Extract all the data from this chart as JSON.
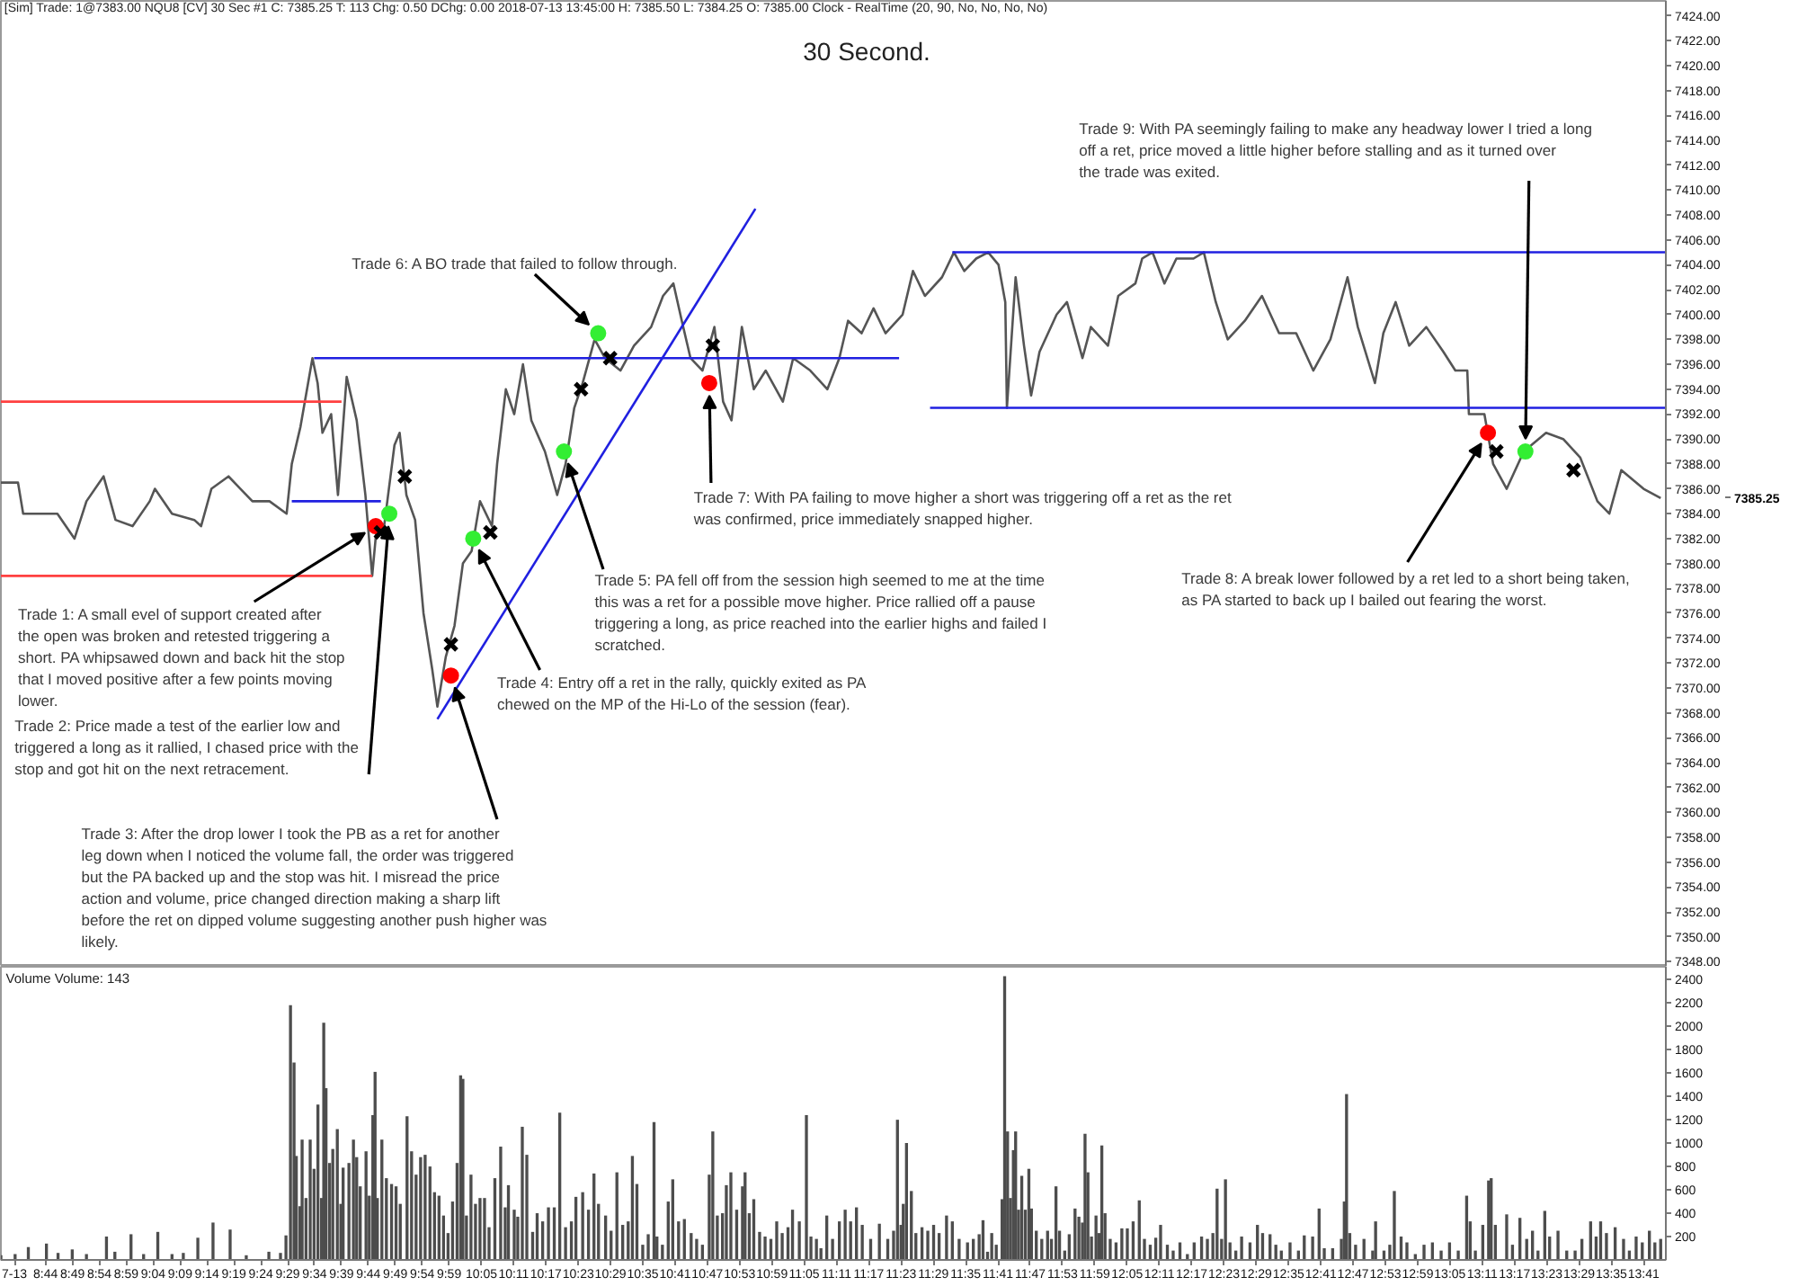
{
  "chart_data": [
    {
      "type": "line",
      "title": "30 Second.",
      "subtitle": "[Sim]  Trade: 1@7383.00  NQU8 [CV]  30 Sec  #1  C: 7385.25  T: 113  Chg: 0.50  DChg: 0.00  2018-07-13 13:45:00 H: 7385.50 L: 7384.25 O: 7385.00 Clock - RealTime  (20, 90, No, No, No, No)",
      "xlim": [
        8.595,
        13.752
      ],
      "ylim": [
        7347.6,
        7425.2
      ],
      "tick_labels": "y",
      "yticks": [
        {
          "value": 7348,
          "label": "7348.00"
        },
        {
          "value": 7350,
          "label": "7350.00"
        },
        {
          "value": 7352,
          "label": "7352.00"
        },
        {
          "value": 7354,
          "label": "7354.00"
        },
        {
          "value": 7356,
          "label": "7356.00"
        },
        {
          "value": 7358,
          "label": "7358.00"
        },
        {
          "value": 7360,
          "label": "7360.00"
        },
        {
          "value": 7362,
          "label": "7362.00"
        },
        {
          "value": 7364,
          "label": "7364.00"
        },
        {
          "value": 7366,
          "label": "7366.00"
        },
        {
          "value": 7368,
          "label": "7368.00"
        },
        {
          "value": 7370,
          "label": "7370.00"
        },
        {
          "value": 7372,
          "label": "7372.00"
        },
        {
          "value": 7374,
          "label": "7374.00"
        },
        {
          "value": 7376,
          "label": "7376.00"
        },
        {
          "value": 7378,
          "label": "7378.00"
        },
        {
          "value": 7380,
          "label": "7380.00"
        },
        {
          "value": 7382,
          "label": "7382.00"
        },
        {
          "value": 7384,
          "label": "7384.00"
        },
        {
          "value": 7386,
          "label": "7386.00"
        },
        {
          "value": 7388,
          "label": "7388.00"
        },
        {
          "value": 7390,
          "label": "7390.00"
        },
        {
          "value": 7392,
          "label": "7392.00"
        },
        {
          "value": 7394,
          "label": "7394.00"
        },
        {
          "value": 7396,
          "label": "7396.00"
        },
        {
          "value": 7398,
          "label": "7398.00"
        },
        {
          "value": 7400,
          "label": "7400.00"
        },
        {
          "value": 7402,
          "label": "7402.00"
        },
        {
          "value": 7404,
          "label": "7404.00"
        },
        {
          "value": 7406,
          "label": "7406.00"
        },
        {
          "value": 7408,
          "label": "7408.00"
        },
        {
          "value": 7410,
          "label": "7410.00"
        },
        {
          "value": 7412,
          "label": "7412.00"
        },
        {
          "value": 7414,
          "label": "7414.00"
        },
        {
          "value": 7416,
          "label": "7416.00"
        },
        {
          "value": 7418,
          "label": "7418.00"
        },
        {
          "value": 7420,
          "label": "7420.00"
        },
        {
          "value": 7422,
          "label": "7422.00"
        },
        {
          "value": 7424,
          "label": "7424.00"
        }
      ],
      "series": [
        {
          "type": "line",
          "color": "#555555",
          "x": [
            8.595,
            8.648,
            8.664,
            8.701,
            8.77,
            8.823,
            8.86,
            8.913,
            8.95,
            9.003,
            9.056,
            9.072,
            9.125,
            9.194,
            9.215,
            9.247,
            9.3,
            9.337,
            9.374,
            9.427,
            9.48,
            9.496,
            9.523,
            9.56,
            9.576,
            9.591,
            9.618,
            9.639,
            9.666,
            9.697,
            9.724,
            9.745,
            9.761,
            9.782,
            9.814,
            9.83,
            9.851,
            9.878,
            9.904,
            9.931,
            9.947,
            9.973,
            10.0,
            10.026,
            10.053,
            10.079,
            10.116,
            10.132,
            10.159,
            10.185,
            10.212,
            10.238,
            10.28,
            10.318,
            10.344,
            10.371,
            10.397,
            10.434,
            10.466,
            10.514,
            10.556,
            10.609,
            10.646,
            10.678,
            10.704,
            10.731,
            10.768,
            10.805,
            10.832,
            10.858,
            10.89,
            10.927,
            10.964,
            11.017,
            11.049,
            11.102,
            11.155,
            11.192,
            11.219,
            11.261,
            11.298,
            11.335,
            11.388,
            11.42,
            11.457,
            11.51,
            11.547,
            11.579,
            11.616,
            11.653,
            11.685,
            11.706,
            11.711,
            11.738,
            11.764,
            11.786,
            11.812,
            11.865,
            11.897,
            11.945,
            11.971,
            12.024,
            12.056,
            12.109,
            12.13,
            12.162,
            12.199,
            12.236,
            12.289,
            12.321,
            12.358,
            12.395,
            12.448,
            12.501,
            12.554,
            12.607,
            12.66,
            12.713,
            12.766,
            12.798,
            12.851,
            12.877,
            12.915,
            12.957,
            13.01,
            13.063,
            13.1,
            13.137,
            13.142,
            13.19,
            13.217,
            13.259,
            13.312,
            13.381,
            13.434,
            13.487,
            13.54,
            13.577,
            13.614,
            13.683,
            13.736
          ],
          "values": [
            7386.5,
            7386.5,
            7384,
            7384,
            7384,
            7382,
            7385,
            7387,
            7383.5,
            7383,
            7385,
            7386,
            7384,
            7383.5,
            7383,
            7386,
            7387,
            7386,
            7385,
            7385,
            7384,
            7388,
            7391,
            7396.5,
            7394.5,
            7390.5,
            7392,
            7385.5,
            7395,
            7391.5,
            7385.5,
            7379,
            7383.5,
            7383,
            7389.5,
            7390.5,
            7385.5,
            7383.5,
            7376,
            7371.5,
            7368.5,
            7372.5,
            7375,
            7380,
            7381,
            7385,
            7383,
            7388,
            7394,
            7392,
            7396,
            7391.5,
            7389,
            7385.5,
            7388,
            7392.5,
            7394.5,
            7398,
            7396.5,
            7395.5,
            7397.5,
            7399,
            7401.5,
            7402.5,
            7399.5,
            7396.5,
            7395.5,
            7399,
            7393,
            7391.5,
            7399,
            7394,
            7395.5,
            7393,
            7396.5,
            7395.5,
            7394,
            7396.5,
            7399.5,
            7398.5,
            7400.5,
            7398.5,
            7400,
            7403.5,
            7401.5,
            7403,
            7405,
            7403.5,
            7404.5,
            7405,
            7404,
            7401,
            7392.5,
            7403,
            7397.5,
            7393.5,
            7397,
            7400,
            7401,
            7396.5,
            7399,
            7397.5,
            7401.5,
            7402.5,
            7404.5,
            7405,
            7402.5,
            7404.5,
            7404.5,
            7405,
            7401,
            7398,
            7399.5,
            7401.5,
            7398.5,
            7398.5,
            7395.5,
            7398,
            7403,
            7399,
            7394.5,
            7398.5,
            7401,
            7397.5,
            7399,
            7397,
            7395.5,
            7395.5,
            7392,
            7392,
            7388,
            7386,
            7389,
            7390.5,
            7390,
            7388.5,
            7385,
            7384,
            7387.5,
            7386,
            7385.25
          ]
        },
        {
          "type": "line",
          "color": "#ff4040",
          "x": [
            8.595,
            9.65
          ],
          "values": [
            7393,
            7393
          ]
        },
        {
          "type": "line",
          "color": "#ff4040",
          "x": [
            8.595,
            9.745
          ],
          "values": [
            7379,
            7379
          ]
        },
        {
          "type": "line",
          "color": "#2020e0",
          "x": [
            9.496,
            9.772
          ],
          "values": [
            7385,
            7385
          ]
        },
        {
          "type": "line",
          "color": "#2020e0",
          "x": [
            9.565,
            11.377
          ],
          "values": [
            7396.5,
            7396.5
          ]
        },
        {
          "type": "line",
          "color": "#2020e0",
          "x": [
            11.542,
            13.752
          ],
          "values": [
            7405,
            7405
          ]
        },
        {
          "type": "line",
          "color": "#2020e0",
          "x": [
            11.473,
            13.752
          ],
          "values": [
            7392.5,
            7392.5
          ]
        },
        {
          "type": "line",
          "color": "#2020e0",
          "x": [
            9.947,
            10.932
          ],
          "values": [
            7367.5,
            7408.5
          ]
        },
        {
          "type": "scatter",
          "marker": "circle",
          "color": "#ff0000",
          "x": [
            9.756,
            9.989,
            10.789,
            13.201
          ],
          "values": [
            7383,
            7371,
            7394.5,
            7390.5
          ]
        },
        {
          "type": "scatter",
          "marker": "circle",
          "color": "#33ee33",
          "x": [
            9.798,
            10.058,
            10.339,
            10.445,
            13.317
          ],
          "values": [
            7384,
            7382,
            7389,
            7398.5,
            7389
          ]
        },
        {
          "type": "scatter",
          "marker": "cross",
          "color": "#000000",
          "x": [
            9.772,
            9.846,
            9.989,
            10.111,
            10.392,
            10.482,
            10.8,
            13.227,
            13.466
          ],
          "values": [
            7382.5,
            7387,
            7373.5,
            7382.5,
            7394,
            7396.5,
            7397.5,
            7389,
            7387.5
          ]
        }
      ],
      "annotations": [
        {
          "text": "Trade 1:  A small evel of support created after the open was broken and retested triggering a short. PA whipsawed down and back hit the stop that I moved positive after a few points moving lower.",
          "x": 9.756,
          "y": 7383
        },
        {
          "text": "Trade 2:  Price made a test of the earlier low and triggered a long as it rallied, I chased price with the stop and got hit on the next retracement.",
          "x": 9.798,
          "y": 7384
        },
        {
          "text": "Trade 3:  After the drop lower I took the PB as a ret for another leg down when I noticed the volume fall, the order was triggered but the PA backed up and the stop was hit.  I misread the price action and volume, price changed direction making a sharp lift before the ret on dipped volume suggesting another push higher was likely.",
          "x": 9.989,
          "y": 7371
        },
        {
          "text": "Trade 4:  Entry off a ret in the rally, quickly exited as PA chewed on the MP of the Hi-Lo of the session (fear).",
          "x": 10.058,
          "y": 7382
        },
        {
          "text": "Trade 5:  PA fell off from the session high seemed to me at the time this was a ret for a possible move higher.  Price rallied off a pause triggering a long, as price reached into the earlier highs and failed I scratched.",
          "x": 10.339,
          "y": 7389
        },
        {
          "text": "Trade 6:  A BO trade that failed to follow through.",
          "x": 10.445,
          "y": 7398.5
        },
        {
          "text": "Trade 7:  With PA failing to move higher a short was triggering off a ret as the ret was confirmed, price immediately snapped higher.",
          "x": 10.789,
          "y": 7394.5
        },
        {
          "text": "Trade 8:  A break lower followed by a ret led to a short being taken, as PA started to back up I bailed out fearing the worst.",
          "x": 13.201,
          "y": 7390.5
        },
        {
          "text": "Trade 9:  With PA seemingly failing to make any headway lower I tried a long off a ret, price moved a little higher before stalling and as it turned over the trade was exited.",
          "x": 13.317,
          "y": 7389
        },
        "7385.25"
      ]
    },
    {
      "type": "bar",
      "title": "Volume  Volume: 143",
      "color": "#4d4d4d",
      "xlim": [
        8.595,
        13.752
      ],
      "ylim": [
        0,
        2510
      ],
      "yticks": [
        200,
        400,
        600,
        800,
        1000,
        1200,
        1400,
        1600,
        1800,
        2000,
        2200,
        2400
      ],
      "xticks": [
        {
          "value": 8.637,
          "label": "7-13"
        },
        {
          "value": 8.7333,
          "label": "8:44"
        },
        {
          "value": 8.8167,
          "label": "8:49"
        },
        {
          "value": 8.9,
          "label": "8:54"
        },
        {
          "value": 8.9833,
          "label": "8:59"
        },
        {
          "value": 9.0667,
          "label": "9:04"
        },
        {
          "value": 9.15,
          "label": "9:09"
        },
        {
          "value": 9.2333,
          "label": "9:14"
        },
        {
          "value": 9.3167,
          "label": "9:19"
        },
        {
          "value": 9.4,
          "label": "9:24"
        },
        {
          "value": 9.4833,
          "label": "9:29"
        },
        {
          "value": 9.5667,
          "label": "9:34"
        },
        {
          "value": 9.65,
          "label": "9:39"
        },
        {
          "value": 9.7333,
          "label": "9:44"
        },
        {
          "value": 9.8167,
          "label": "9:49"
        },
        {
          "value": 9.9,
          "label": "9:54"
        },
        {
          "value": 9.9833,
          "label": "9:59"
        },
        {
          "value": 10.0833,
          "label": "10:05"
        },
        {
          "value": 10.1833,
          "label": "10:11"
        },
        {
          "value": 10.2833,
          "label": "10:17"
        },
        {
          "value": 10.3833,
          "label": "10:23"
        },
        {
          "value": 10.4833,
          "label": "10:29"
        },
        {
          "value": 10.5833,
          "label": "10:35"
        },
        {
          "value": 10.6833,
          "label": "10:41"
        },
        {
          "value": 10.7833,
          "label": "10:47"
        },
        {
          "value": 10.8833,
          "label": "10:53"
        },
        {
          "value": 10.9833,
          "label": "10:59"
        },
        {
          "value": 11.0833,
          "label": "11:05"
        },
        {
          "value": 11.1833,
          "label": "11:11"
        },
        {
          "value": 11.2833,
          "label": "11:17"
        },
        {
          "value": 11.3833,
          "label": "11:23"
        },
        {
          "value": 11.4833,
          "label": "11:29"
        },
        {
          "value": 11.5833,
          "label": "11:35"
        },
        {
          "value": 11.6833,
          "label": "11:41"
        },
        {
          "value": 11.7833,
          "label": "11:47"
        },
        {
          "value": 11.8833,
          "label": "11:53"
        },
        {
          "value": 11.9833,
          "label": "11:59"
        },
        {
          "value": 12.0833,
          "label": "12:05"
        },
        {
          "value": 12.1833,
          "label": "12:11"
        },
        {
          "value": 12.2833,
          "label": "12:17"
        },
        {
          "value": 12.3833,
          "label": "12:23"
        },
        {
          "value": 12.4833,
          "label": "12:29"
        },
        {
          "value": 12.5833,
          "label": "12:35"
        },
        {
          "value": 12.6833,
          "label": "12:41"
        },
        {
          "value": 12.7833,
          "label": "12:47"
        },
        {
          "value": 12.8833,
          "label": "12:53"
        },
        {
          "value": 12.9833,
          "label": "12:59"
        },
        {
          "value": 13.0833,
          "label": "13:05"
        },
        {
          "value": 13.1833,
          "label": "13:11"
        },
        {
          "value": 13.2833,
          "label": "13:17"
        },
        {
          "value": 13.3833,
          "label": "13:23"
        },
        {
          "value": 13.4833,
          "label": "13:29"
        },
        {
          "value": 13.5833,
          "label": "13:35"
        },
        {
          "value": 13.6833,
          "label": "13:41"
        }
      ],
      "x": [
        8.595,
        8.639,
        8.68,
        8.736,
        8.772,
        8.816,
        8.86,
        8.922,
        8.948,
        8.998,
        9.037,
        9.081,
        9.125,
        9.16,
        9.205,
        9.252,
        9.305,
        9.355,
        9.425,
        9.461,
        9.478,
        9.492,
        9.503,
        9.51,
        9.521,
        9.528,
        9.54,
        9.553,
        9.565,
        9.577,
        9.588,
        9.595,
        9.602,
        9.613,
        9.623,
        9.637,
        9.648,
        9.655,
        9.673,
        9.687,
        9.697,
        9.708,
        9.726,
        9.736,
        9.747,
        9.754,
        9.761,
        9.775,
        9.789,
        9.805,
        9.819,
        9.832,
        9.853,
        9.867,
        9.881,
        9.895,
        9.909,
        9.924,
        9.938,
        9.952,
        9.966,
        9.98,
        9.994,
        10.008,
        10.019,
        10.026,
        10.037,
        10.051,
        10.065,
        10.079,
        10.093,
        10.107,
        10.125,
        10.143,
        10.157,
        10.167,
        10.185,
        10.196,
        10.21,
        10.224,
        10.242,
        10.256,
        10.273,
        10.291,
        10.309,
        10.326,
        10.344,
        10.362,
        10.376,
        10.397,
        10.415,
        10.432,
        10.446,
        10.468,
        10.485,
        10.503,
        10.521,
        10.538,
        10.551,
        10.565,
        10.583,
        10.6,
        10.618,
        10.627,
        10.644,
        10.662,
        10.676,
        10.694,
        10.712,
        10.733,
        10.75,
        10.768,
        10.789,
        10.8,
        10.814,
        10.83,
        10.842,
        10.856,
        10.874,
        10.892,
        10.9,
        10.913,
        10.927,
        10.945,
        10.962,
        10.98,
        10.998,
        11.015,
        11.033,
        11.047,
        11.068,
        11.09,
        11.104,
        11.121,
        11.135,
        11.153,
        11.171,
        11.192,
        11.21,
        11.227,
        11.245,
        11.263,
        11.289,
        11.316,
        11.342,
        11.36,
        11.372,
        11.383,
        11.39,
        11.4,
        11.415,
        11.429,
        11.448,
        11.466,
        11.484,
        11.501,
        11.524,
        11.542,
        11.563,
        11.589,
        11.607,
        11.625,
        11.637,
        11.651,
        11.664,
        11.678,
        11.696,
        11.704,
        11.713,
        11.722,
        11.731,
        11.738,
        11.747,
        11.757,
        11.768,
        11.779,
        11.787,
        11.802,
        11.819,
        11.837,
        11.849,
        11.863,
        11.874,
        11.89,
        11.904,
        11.922,
        11.934,
        11.945,
        11.953,
        11.962,
        11.973,
        11.987,
        11.996,
        12.005,
        12.015,
        12.031,
        12.049,
        12.067,
        12.084,
        12.102,
        12.121,
        12.137,
        12.155,
        12.172,
        12.187,
        12.208,
        12.226,
        12.247,
        12.27,
        12.291,
        12.314,
        12.332,
        12.349,
        12.362,
        12.376,
        12.388,
        12.402,
        12.42,
        12.438,
        12.464,
        12.487,
        12.503,
        12.526,
        12.544,
        12.561,
        12.588,
        12.614,
        12.632,
        12.658,
        12.678,
        12.694,
        12.72,
        12.747,
        12.756,
        12.763,
        12.773,
        12.791,
        12.817,
        12.844,
        12.853,
        12.879,
        12.897,
        12.911,
        12.932,
        12.95,
        12.976,
        13.003,
        13.029,
        13.056,
        13.082,
        13.109,
        13.135,
        13.146,
        13.162,
        13.185,
        13.203,
        13.211,
        13.224,
        13.259,
        13.277,
        13.3,
        13.321,
        13.339,
        13.356,
        13.377,
        13.392,
        13.418,
        13.445,
        13.471,
        13.492,
        13.519,
        13.536,
        13.55,
        13.568,
        13.595,
        13.621,
        13.639,
        13.66,
        13.679,
        13.701,
        13.718,
        13.736
      ],
      "values": [
        40,
        50,
        110,
        140,
        60,
        90,
        50,
        200,
        70,
        220,
        50,
        240,
        50,
        60,
        190,
        320,
        260,
        40,
        70,
        60,
        210,
        2180,
        1690,
        890,
        460,
        1030,
        530,
        1030,
        780,
        1330,
        530,
        2030,
        1470,
        830,
        950,
        1120,
        480,
        790,
        830,
        1030,
        880,
        630,
        930,
        550,
        1240,
        1610,
        530,
        1030,
        700,
        650,
        630,
        480,
        1230,
        930,
        730,
        880,
        900,
        800,
        580,
        550,
        380,
        230,
        500,
        830,
        1580,
        1550,
        380,
        730,
        480,
        530,
        530,
        280,
        700,
        970,
        450,
        640,
        430,
        370,
        1140,
        900,
        240,
        400,
        330,
        450,
        450,
        1260,
        280,
        330,
        540,
        580,
        430,
        740,
        480,
        380,
        250,
        750,
        300,
        330,
        890,
        650,
        130,
        220,
        1180,
        200,
        130,
        500,
        690,
        330,
        350,
        230,
        180,
        130,
        730,
        1100,
        380,
        400,
        640,
        750,
        430,
        630,
        750,
        400,
        520,
        240,
        200,
        180,
        330,
        230,
        280,
        430,
        330,
        1240,
        200,
        180,
        100,
        380,
        180,
        330,
        430,
        330,
        450,
        300,
        180,
        310,
        180,
        250,
        1200,
        300,
        480,
        1000,
        590,
        230,
        280,
        250,
        300,
        230,
        380,
        330,
        180,
        150,
        180,
        220,
        340,
        70,
        230,
        130,
        520,
        2430,
        1100,
        530,
        940,
        1100,
        430,
        720,
        430,
        780,
        440,
        250,
        180,
        250,
        180,
        630,
        250,
        80,
        220,
        440,
        370,
        320,
        1080,
        750,
        200,
        380,
        230,
        980,
        400,
        180,
        150,
        270,
        270,
        330,
        510,
        180,
        130,
        190,
        300,
        130,
        80,
        150,
        50,
        150,
        200,
        180,
        230,
        610,
        180,
        690,
        150,
        80,
        200,
        150,
        300,
        230,
        220,
        130,
        80,
        150,
        80,
        210,
        200,
        440,
        100,
        100,
        180,
        500,
        1420,
        230,
        130,
        180,
        80,
        330,
        80,
        130,
        590,
        200,
        150,
        50,
        130,
        150,
        80,
        150,
        80,
        550,
        330,
        80,
        300,
        680,
        700,
        300,
        390,
        130,
        360,
        180,
        250,
        80,
        420,
        200,
        250,
        80,
        80,
        180,
        330,
        200,
        330,
        230,
        280,
        180,
        80,
        200,
        150,
        250,
        150,
        180
      ]
    }
  ]
}
